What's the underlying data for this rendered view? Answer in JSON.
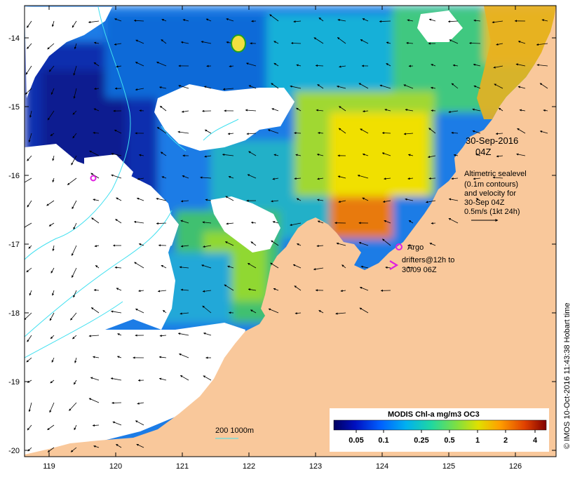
{
  "map": {
    "lon_range": [
      118.6,
      126.7
    ],
    "lat_range": [
      -20.1,
      -13.6
    ],
    "lon_ticks": [
      "119",
      "120",
      "121",
      "122",
      "123",
      "124",
      "125",
      "126"
    ],
    "lat_ticks": [
      "-14",
      "-15",
      "-16",
      "-17",
      "-18",
      "-19",
      "-20"
    ],
    "colors": {
      "land": "#f9c89b",
      "no_data": "#ffffff",
      "contour": "#40e0f0",
      "argo": "#e020e0",
      "drifter": "#e020e0"
    }
  },
  "annotations": {
    "date": "30-Sep-2016",
    "time": "04Z",
    "legend_lines": [
      "Altimetric sealevel",
      "(0.1m contours)",
      "and velocity for",
      "30-Sep 04Z",
      "0.5m/s (1kt 24h)"
    ],
    "argo_label": "Argo",
    "drifters_lines": [
      "drifters@12h to",
      "30/09 06Z"
    ],
    "depth_label": "200  1000m"
  },
  "colorbar": {
    "title": "MODIS Chl-a mg/m3 OC3",
    "ticks": [
      "0.05",
      "0.1",
      "0.25",
      "0.5",
      "1",
      "2",
      "4"
    ]
  },
  "credit": "© IMOS 10-Oct-2016 11:43:38 Hobart time"
}
